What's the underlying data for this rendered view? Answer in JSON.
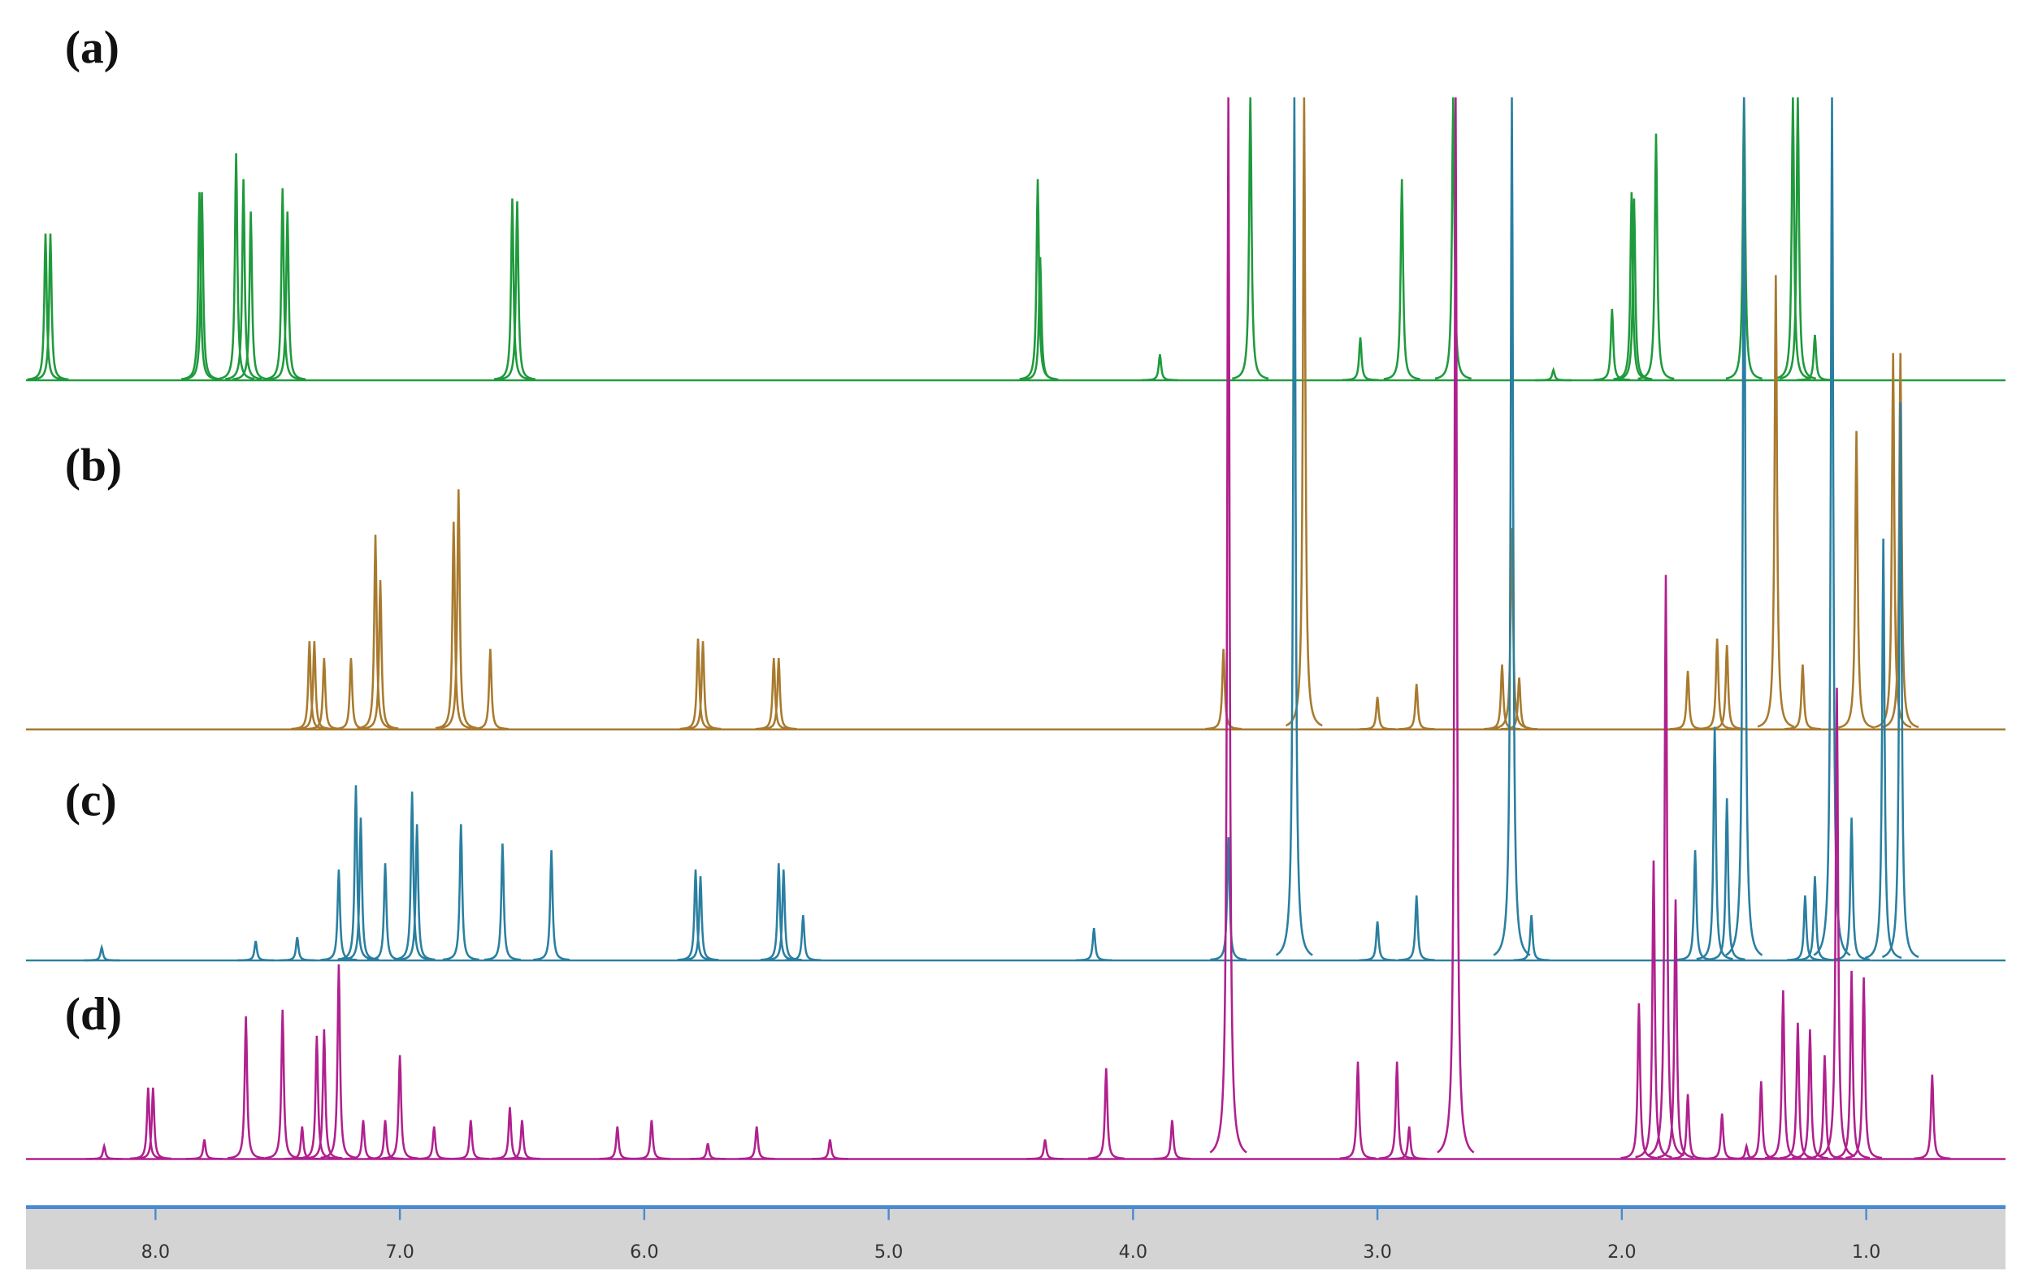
{
  "chart_data": {
    "type": "nmr",
    "xlim": [
      8.53,
      0.43
    ],
    "xticks": [
      {
        "value": 8,
        "label": "8.0"
      },
      {
        "value": 7,
        "label": "7.0"
      },
      {
        "value": 6,
        "label": "6.0"
      },
      {
        "value": 5,
        "label": "5.0"
      },
      {
        "value": 4,
        "label": "4.0"
      },
      {
        "value": 3,
        "label": "3.0"
      },
      {
        "value": 2,
        "label": "2.0"
      },
      {
        "value": 1,
        "label": "1.0"
      }
    ],
    "series": [
      {
        "name": "(a)",
        "color": "#1f9a3c",
        "x": [
          8.45,
          8.43,
          7.82,
          7.81,
          7.67,
          7.64,
          7.61,
          7.48,
          7.46,
          6.54,
          6.52,
          4.39,
          4.38,
          3.89,
          3.52,
          3.07,
          2.9,
          2.69,
          2.28,
          2.04,
          1.96,
          1.95,
          1.86,
          1.5,
          1.3,
          1.28,
          1.21
        ],
        "values": [
          113,
          113,
          145,
          145,
          175,
          155,
          130,
          148,
          130,
          140,
          138,
          155,
          95,
          20,
          218,
          33,
          155,
          218,
          8,
          55,
          145,
          140,
          190,
          218,
          218,
          218,
          35
        ]
      },
      {
        "name": "(b)",
        "color": "#a87a2e",
        "x": [
          7.37,
          7.35,
          7.31,
          7.2,
          7.1,
          7.08,
          6.78,
          6.76,
          6.63,
          5.78,
          5.76,
          5.47,
          5.45,
          3.63,
          3.3,
          3.0,
          2.84,
          2.49,
          2.45,
          2.42,
          1.73,
          1.61,
          1.57,
          1.37,
          1.26,
          1.04,
          0.89,
          0.86
        ],
        "values": [
          68,
          68,
          55,
          55,
          150,
          115,
          160,
          185,
          62,
          70,
          68,
          55,
          55,
          62,
          487,
          25,
          35,
          50,
          155,
          40,
          45,
          70,
          65,
          350,
          50,
          230,
          290,
          290
        ]
      },
      {
        "name": "(c)",
        "color": "#2a7fa0",
        "x": [
          8.22,
          7.59,
          7.42,
          7.25,
          7.18,
          7.16,
          7.06,
          6.95,
          6.93,
          6.75,
          6.58,
          6.38,
          5.79,
          5.77,
          5.45,
          5.43,
          5.35,
          4.16,
          3.61,
          3.34,
          3.0,
          2.84,
          2.45,
          2.37,
          1.7,
          1.62,
          1.57,
          1.5,
          1.25,
          1.21,
          1.14,
          1.06,
          0.93,
          0.86
        ],
        "values": [
          10,
          15,
          18,
          70,
          135,
          110,
          75,
          130,
          105,
          105,
          90,
          85,
          70,
          65,
          75,
          70,
          35,
          25,
          95,
          665,
          30,
          50,
          665,
          35,
          85,
          180,
          125,
          665,
          50,
          65,
          665,
          110,
          325,
          430
        ]
      },
      {
        "name": "(d)",
        "color": "#b0208e",
        "x": [
          8.21,
          8.03,
          8.01,
          7.8,
          7.63,
          7.48,
          7.4,
          7.34,
          7.31,
          7.25,
          7.15,
          7.06,
          7.0,
          6.86,
          6.71,
          6.55,
          6.5,
          6.11,
          5.97,
          5.74,
          5.54,
          5.24,
          4.36,
          4.11,
          3.84,
          3.61,
          3.08,
          2.92,
          2.87,
          2.68,
          1.93,
          1.87,
          1.82,
          1.78,
          1.73,
          1.59,
          1.49,
          1.43,
          1.34,
          1.28,
          1.23,
          1.17,
          1.12,
          1.06,
          1.01,
          0.73
        ],
        "values": [
          10,
          55,
          55,
          15,
          110,
          115,
          25,
          95,
          100,
          150,
          30,
          30,
          80,
          25,
          30,
          40,
          30,
          25,
          30,
          12,
          25,
          15,
          15,
          70,
          30,
          818,
          75,
          75,
          25,
          818,
          120,
          230,
          450,
          200,
          50,
          35,
          10,
          60,
          130,
          105,
          100,
          80,
          363,
          145,
          140,
          65
        ]
      }
    ]
  }
}
